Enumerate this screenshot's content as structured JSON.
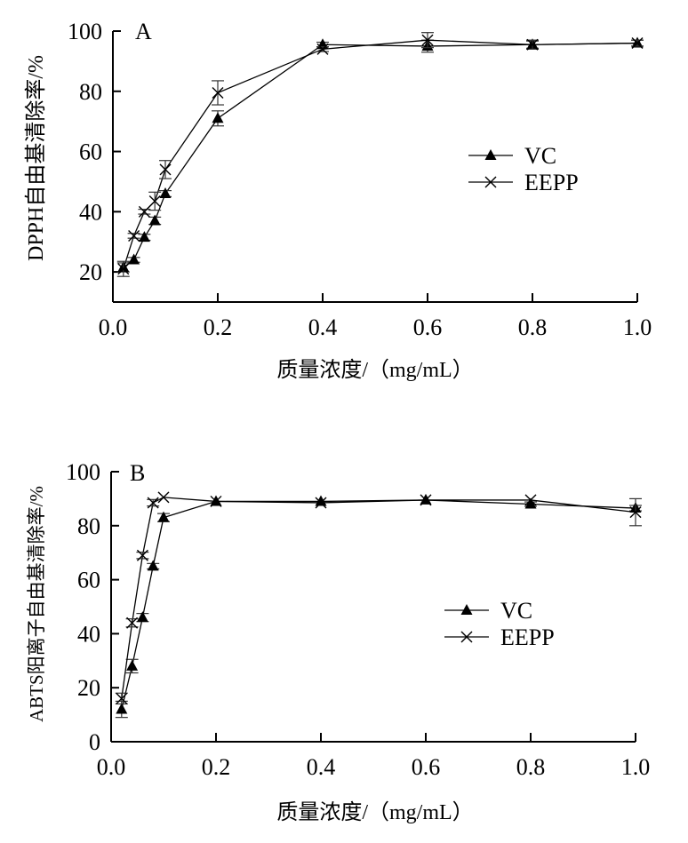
{
  "chart_data": [
    {
      "type": "line",
      "panel_label": "A",
      "title": "",
      "xlabel": "质量浓度/（mg/mL）",
      "ylabel": "DPPH自由基清除率/%",
      "xlim": [
        0.0,
        1.0
      ],
      "ylim": [
        10,
        100
      ],
      "xticks": [
        0.0,
        0.2,
        0.4,
        0.6,
        0.8,
        1.0
      ],
      "xtick_labels": [
        "0.0",
        "0.2",
        "0.4",
        "0.6",
        "0.8",
        "1.0"
      ],
      "yticks": [
        20,
        40,
        60,
        80,
        100
      ],
      "ytick_labels": [
        "20",
        "40",
        "60",
        "80",
        "100"
      ],
      "grid": false,
      "legend_position": "center-right",
      "x": [
        0.02,
        0.04,
        0.06,
        0.08,
        0.1,
        0.2,
        0.4,
        0.6,
        0.8,
        1.0
      ],
      "series": [
        {
          "name": "VC",
          "marker": "triangle",
          "values": [
            21.5,
            24,
            31.5,
            37,
            46,
            71,
            95.5,
            95,
            95.5,
            96
          ],
          "errors": [
            1.5,
            0.8,
            1.0,
            1.2,
            1.0,
            2.5,
            0.8,
            2.0,
            1.2,
            1.0
          ]
        },
        {
          "name": "EEPP",
          "marker": "x",
          "values": [
            21,
            32,
            40,
            43.5,
            54,
            79.5,
            94,
            97,
            95.5,
            96
          ],
          "errors": [
            2.5,
            0.8,
            0.8,
            3.0,
            3.0,
            4.0,
            0.8,
            2.5,
            1.5,
            1.0
          ]
        }
      ]
    },
    {
      "type": "line",
      "panel_label": "B",
      "title": "",
      "xlabel": "质量浓度/（mg/mL）",
      "ylabel": "ABTS阳离子自由基清除率/%",
      "xlim": [
        0.0,
        1.0
      ],
      "ylim": [
        0,
        100
      ],
      "xticks": [
        0.0,
        0.2,
        0.4,
        0.6,
        0.8,
        1.0
      ],
      "xtick_labels": [
        "0.0",
        "0.2",
        "0.4",
        "0.6",
        "0.8",
        "1.0"
      ],
      "yticks": [
        0,
        20,
        40,
        60,
        80,
        100
      ],
      "ytick_labels": [
        "0",
        "20",
        "40",
        "60",
        "80",
        "100"
      ],
      "grid": false,
      "legend_position": "center-right",
      "x": [
        0.02,
        0.04,
        0.06,
        0.08,
        0.1,
        0.2,
        0.4,
        0.6,
        0.8,
        1.0
      ],
      "series": [
        {
          "name": "VC",
          "marker": "triangle",
          "values": [
            12,
            28,
            46,
            65,
            83,
            89,
            89,
            89.5,
            88,
            86.5
          ],
          "errors": [
            3.0,
            2.5,
            1.5,
            1.0,
            1.5,
            0.5,
            0.5,
            0.5,
            0.8,
            1.0
          ]
        },
        {
          "name": "EEPP",
          "marker": "x",
          "values": [
            16,
            44,
            69,
            88.5,
            90.5,
            89,
            88.5,
            89.5,
            89.5,
            85
          ],
          "errors": [
            2.0,
            1.5,
            1.2,
            1.2,
            0.6,
            0.5,
            0.5,
            0.5,
            0.6,
            5.0
          ]
        }
      ]
    }
  ]
}
